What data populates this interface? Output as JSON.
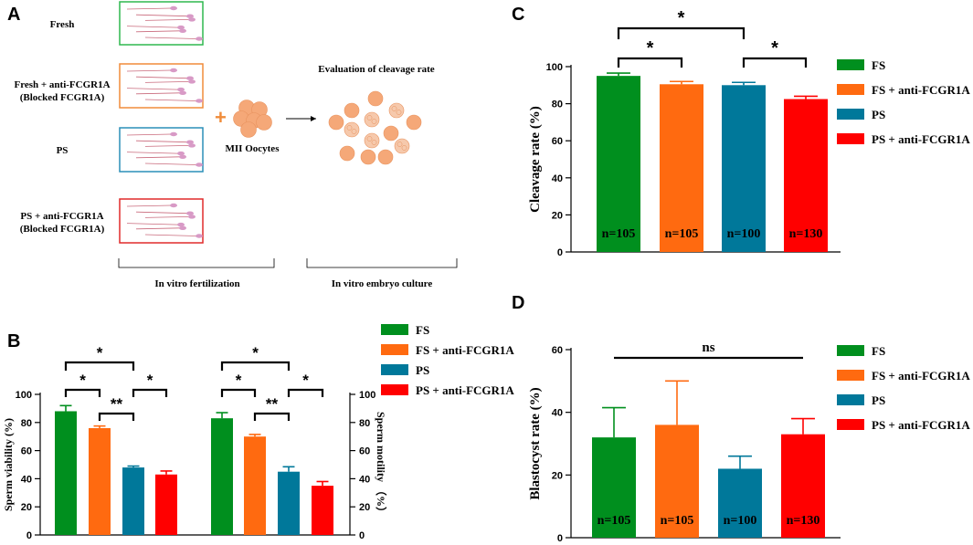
{
  "colors": {
    "FS": "#008f1e",
    "FS + anti-FCGR1A": "#ff6a10",
    "PS": "#00789a",
    "PS + anti-FCGR1A": "#ff0000",
    "egg": "#f5a878",
    "egg_dark": "#e8935f",
    "sperm_head": "#d89ac6",
    "sperm_tail": "#c96a7c"
  },
  "panel_labels": [
    "A",
    "B",
    "C",
    "D"
  ],
  "panel_a": {
    "groups": [
      {
        "label": "Fresh",
        "sublabel": "",
        "color": "#2fb84f"
      },
      {
        "label": "Fresh + anti-FCGR1A",
        "sublabel": "(Blocked FCGR1A)",
        "color": "#f08c3a"
      },
      {
        "label": "PS",
        "sublabel": "",
        "color": "#2a8fb8"
      },
      {
        "label": "PS + anti-FCGR1A",
        "sublabel": "(Blocked FCGR1A)",
        "color": "#e02a2a"
      }
    ],
    "plus": "+",
    "oocyte_label": "MII Oocytes",
    "evaluation_label": "Evaluation of cleavage rate",
    "bracket_ivf": "In vitro fertilization",
    "bracket_culture": "In vitro embryo culture"
  },
  "chart_data": [
    {
      "panel": "B",
      "type": "bar",
      "subplots": [
        {
          "ylabel": "Sperm viability (%)",
          "ylim": [
            0,
            100
          ],
          "yticks": [
            0,
            20,
            40,
            60,
            80,
            100
          ],
          "categories": [
            "FS",
            "FS + anti-FCGR1A",
            "PS",
            "PS + anti-FCGR1A"
          ],
          "values": [
            88,
            76,
            48,
            43
          ],
          "errors": [
            4,
            1.5,
            1,
            2.5
          ],
          "significance": [
            {
              "from": 0,
              "to": 2,
              "label": "*"
            },
            {
              "from": 0,
              "to": 1,
              "label": "*"
            },
            {
              "from": 2,
              "to": 3,
              "label": "*"
            },
            {
              "from": 1,
              "to": 2,
              "label": "**"
            }
          ]
        },
        {
          "ylabel": "Sperm motility （%）",
          "ylim": [
            0,
            100
          ],
          "yticks": [
            0,
            20,
            40,
            60,
            80,
            100
          ],
          "categories": [
            "FS",
            "FS + anti-FCGR1A",
            "PS",
            "PS + anti-FCGR1A"
          ],
          "values": [
            83,
            70,
            45,
            35
          ],
          "errors": [
            4,
            1.5,
            3.5,
            3
          ],
          "significance": [
            {
              "from": 0,
              "to": 2,
              "label": "*"
            },
            {
              "from": 0,
              "to": 1,
              "label": "*"
            },
            {
              "from": 2,
              "to": 3,
              "label": "*"
            },
            {
              "from": 1,
              "to": 2,
              "label": "**"
            }
          ]
        }
      ],
      "legend": [
        "FS",
        "FS + anti-FCGR1A",
        "PS",
        "PS + anti-FCGR1A"
      ]
    },
    {
      "panel": "C",
      "type": "bar",
      "ylabel": "Cleavage rate (%)",
      "ylim": [
        0,
        100
      ],
      "yticks": [
        0,
        20,
        40,
        60,
        80,
        100
      ],
      "categories": [
        "FS",
        "FS + anti-FCGR1A",
        "PS",
        "PS + anti-FCGR1A"
      ],
      "values": [
        95,
        90.5,
        90,
        82.5
      ],
      "errors": [
        1.5,
        1.5,
        1.5,
        1.5
      ],
      "n_labels": [
        "n=105",
        "n=105",
        "n=100",
        "n=130"
      ],
      "significance": [
        {
          "from": 0,
          "to": 2,
          "label": "*"
        },
        {
          "from": 0,
          "to": 1,
          "label": "*"
        },
        {
          "from": 2,
          "to": 3,
          "label": "*"
        }
      ],
      "legend": [
        "FS",
        "FS + anti-FCGR1A",
        "PS",
        "PS + anti-FCGR1A"
      ]
    },
    {
      "panel": "D",
      "type": "bar",
      "ylabel": "Blastocyst rate (%)",
      "ylim": [
        0,
        60
      ],
      "yticks": [
        0,
        20,
        40,
        60
      ],
      "categories": [
        "FS",
        "FS + anti-FCGR1A",
        "PS",
        "PS + anti-FCGR1A"
      ],
      "values": [
        32,
        36,
        22,
        33
      ],
      "errors": [
        9.5,
        14,
        4,
        5
      ],
      "n_labels": [
        "n=105",
        "n=105",
        "n=100",
        "n=130"
      ],
      "significance_line": {
        "from": 0,
        "to": 3,
        "label": "ns"
      },
      "legend": [
        "FS",
        "FS + anti-FCGR1A",
        "PS",
        "PS + anti-FCGR1A"
      ]
    }
  ]
}
